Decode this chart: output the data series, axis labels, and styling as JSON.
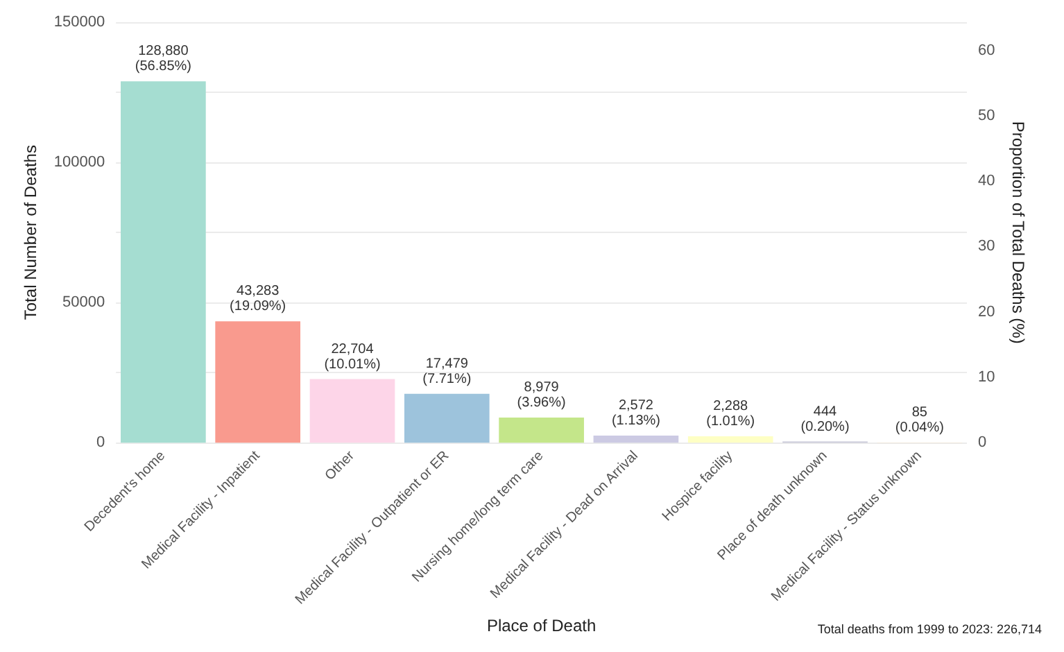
{
  "chart_data": {
    "type": "bar",
    "xlabel": "Place of Death",
    "ylabel": "Total Number of Deaths",
    "y2label": "Proportion of Total Deaths (%)",
    "categories": [
      "Decedent's home",
      "Medical Facility - Inpatient",
      "Other",
      "Medical Facility - Outpatient or ER",
      "Nursing home/long term care",
      "Medical Facility - Dead on Arrival",
      "Hospice facility",
      "Place of death unknown",
      "Medical Facility - Status unknown"
    ],
    "values": [
      128880,
      43283,
      22704,
      17479,
      8979,
      2572,
      2288,
      444,
      85
    ],
    "colors": [
      "#a5ddd1",
      "#f99a8e",
      "#fdd5e8",
      "#9dc3dc",
      "#c4e68a",
      "#cccae3",
      "#feffc4",
      "#c8c8d8",
      "#fde0b0"
    ],
    "value_labels": [
      "128,880\n(56.85%)",
      "43,283\n(19.09%)",
      "22,704\n(10.01%)",
      "17,479\n(7.71%)",
      "8,979\n(3.96%)",
      "2,572\n(1.13%)",
      "2,288\n(1.01%)",
      "444\n(0.20%)",
      "85\n(0.04%)"
    ],
    "ylim": [
      0,
      150000
    ],
    "yticks": [
      0,
      {
        "value": 25000,
        "label": null
      },
      50000,
      {
        "value": 75000,
        "label": null
      },
      100000,
      {
        "value": 125000,
        "label": null
      },
      150000
    ],
    "y2lim": [
      0,
      64.3
    ],
    "y2ticks": [
      0,
      10,
      20,
      30,
      40,
      50,
      60
    ],
    "grid": "y",
    "annotations": [
      "Total deaths from 1999 to 2023: 226,714"
    ]
  }
}
